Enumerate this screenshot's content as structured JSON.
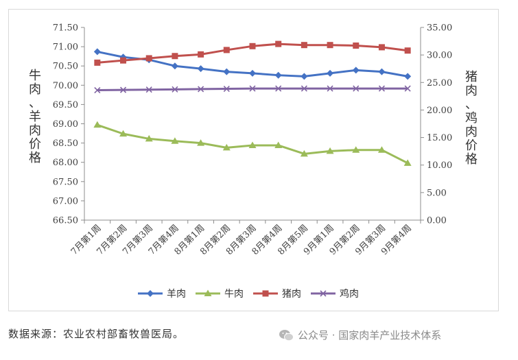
{
  "chart_data": {
    "type": "line",
    "title": "",
    "categories": [
      "7月第1周",
      "7月第2周",
      "7月第3周",
      "7月第4周",
      "8月第1周",
      "8月第2周",
      "8月第3周",
      "8月第4周",
      "8月第5周",
      "9月第1周",
      "9月第2周",
      "9月第3周",
      "9月第4周"
    ],
    "left_axis": {
      "label": "牛肉、羊肉价格",
      "range": [
        66.5,
        71.5
      ],
      "step": 0.5,
      "tick_labels": [
        "66.50",
        "67.00",
        "67.50",
        "68.00",
        "68.50",
        "69.00",
        "69.50",
        "70.00",
        "70.50",
        "71.00",
        "71.50"
      ]
    },
    "right_axis": {
      "label": "猪肉、鸡肉价格",
      "range": [
        0,
        35
      ],
      "step": 5,
      "tick_labels": [
        "0.00",
        "5.00",
        "10.00",
        "15.00",
        "20.00",
        "25.00",
        "30.00",
        "35.00"
      ]
    },
    "series": [
      {
        "name": "羊肉",
        "axis": "left",
        "marker": "diamond",
        "color": "#4472C4",
        "values": [
          70.87,
          70.73,
          70.66,
          70.5,
          70.43,
          70.35,
          70.31,
          70.26,
          70.23,
          70.31,
          70.39,
          70.35,
          70.23
        ]
      },
      {
        "name": "牛肉",
        "axis": "left",
        "marker": "triangle",
        "color": "#9BBB59",
        "values": [
          68.97,
          68.74,
          68.61,
          68.55,
          68.5,
          68.38,
          68.44,
          68.44,
          68.22,
          68.29,
          68.32,
          68.32,
          67.98
        ]
      },
      {
        "name": "猪肉",
        "axis": "right",
        "marker": "square",
        "color": "#C0504D",
        "values": [
          28.6,
          29.0,
          29.4,
          29.8,
          30.1,
          30.9,
          31.6,
          32.0,
          31.8,
          31.8,
          31.7,
          31.4,
          30.8
        ]
      },
      {
        "name": "鸡肉",
        "axis": "right",
        "marker": "x",
        "color": "#8064A2",
        "values": [
          23.6,
          23.65,
          23.7,
          23.75,
          23.8,
          23.85,
          23.9,
          23.9,
          23.9,
          23.9,
          23.9,
          23.9,
          23.9
        ]
      }
    ],
    "legend_position": "bottom"
  },
  "source_note": "数据来源：农业农村部畜牧兽医局。",
  "watermark": "公众号 · 国家肉羊产业技术体系"
}
